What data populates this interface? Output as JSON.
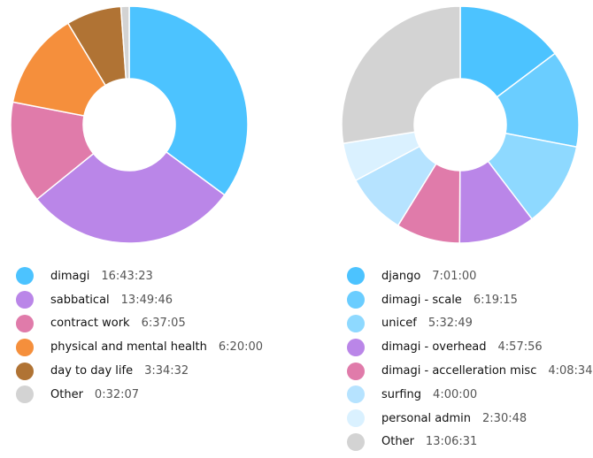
{
  "colors": {
    "background": "#ffffff",
    "text": "#111111",
    "value_text": "#555555"
  },
  "chart_data": [
    {
      "type": "pie",
      "variant": "donut",
      "title": "",
      "legend_position": "bottom",
      "categories": [
        "dimagi",
        "sabbatical",
        "contract work",
        "physical and mental health",
        "day to day life",
        "Other"
      ],
      "values": [
        60203,
        49786,
        23825,
        22800,
        12872,
        1927
      ],
      "duration_labels": [
        "16:43:23",
        "13:49:46",
        "6:37:05",
        "6:20:00",
        "3:34:32",
        "0:32:07"
      ],
      "colors": [
        "#4CC3FF",
        "#BA86E8",
        "#E07BAA",
        "#F58F3C",
        "#B07334",
        "#D3D3D3"
      ]
    },
    {
      "type": "pie",
      "variant": "donut",
      "title": "",
      "legend_position": "bottom",
      "categories": [
        "django",
        "dimagi - scale",
        "unicef",
        "dimagi - overhead",
        "dimagi - accelleration misc",
        "surfing",
        "personal admin",
        "Other"
      ],
      "values": [
        25260,
        22755,
        19969,
        17876,
        14914,
        14400,
        9048,
        47191
      ],
      "duration_labels": [
        "7:01:00",
        "6:19:15",
        "5:32:49",
        "4:57:56",
        "4:08:34",
        "4:00:00",
        "2:30:48",
        "13:06:31"
      ],
      "colors": [
        "#4CC3FF",
        "#6ACDFF",
        "#8ED9FF",
        "#BA86E8",
        "#E07BAA",
        "#B6E3FF",
        "#DAF1FF",
        "#D3D3D3"
      ]
    }
  ]
}
